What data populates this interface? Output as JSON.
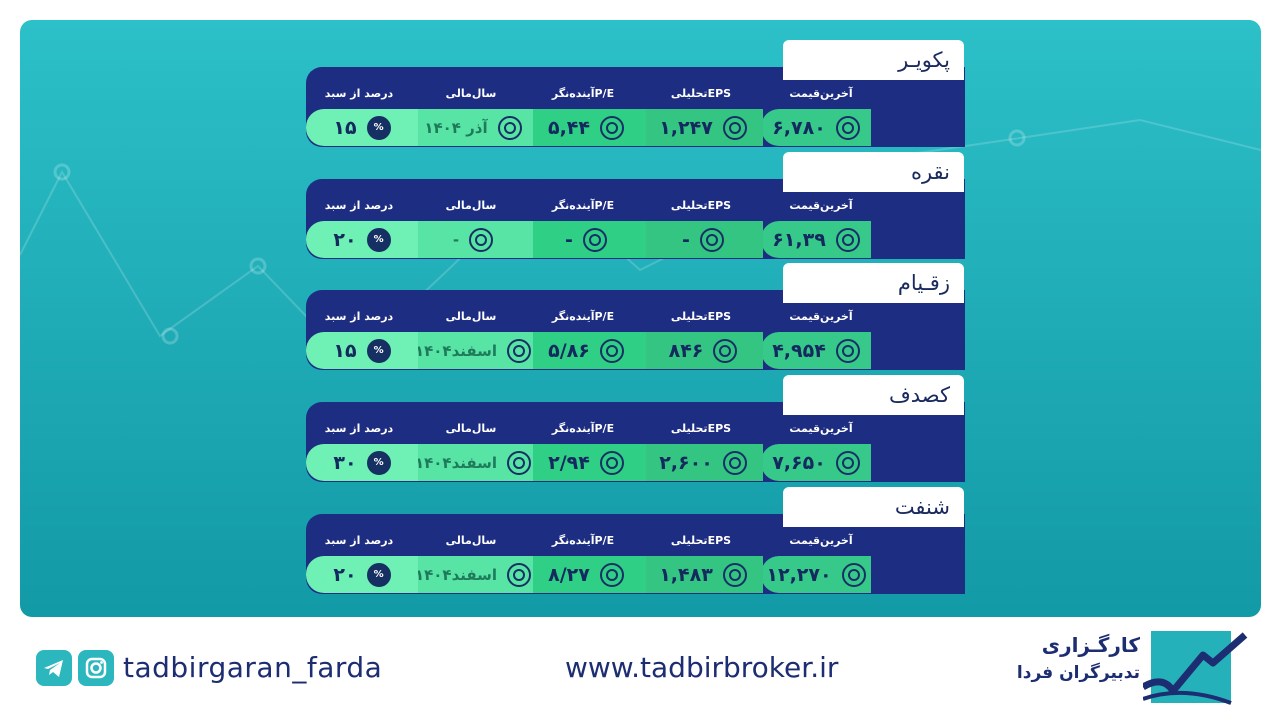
{
  "headers": {
    "last_price": "آخرین‌قیمت",
    "eps": "EPSتحلیلی",
    "pe": "P/Eآینده‌نگر",
    "fiscal": "سال‌مالی",
    "weight": "درصد از سبد"
  },
  "stocks": [
    {
      "name": "پکویـر",
      "last_price": "۶,۷۸۰",
      "eps": "۱,۲۴۷",
      "pe": "۵,۴۴",
      "fiscal": "آذر ۱۴۰۴",
      "weight": "۱۵"
    },
    {
      "name": "نقره",
      "last_price": "۶۱,۳۹",
      "eps": "-",
      "pe": "-",
      "fiscal": "-",
      "weight": "۲۰"
    },
    {
      "name": "زقـیام",
      "last_price": "۴,۹۵۴",
      "eps": "۸۴۶",
      "pe": "۵/۸۶",
      "fiscal": "اسفند۱۴۰۴",
      "weight": "۱۵"
    },
    {
      "name": "کصدف",
      "last_price": "۷,۶۵۰",
      "eps": "۲,۶۰۰",
      "pe": "۲/۹۴",
      "fiscal": "اسفند۱۴۰۴",
      "weight": "۳۰"
    },
    {
      "name": "شنفت",
      "last_price": "۱۲,۲۷۰",
      "eps": "۱,۴۸۳",
      "pe": "۸/۲۷",
      "fiscal": "اسفند۱۴۰۴",
      "weight": "۲۰"
    }
  ],
  "footer": {
    "handle": "tadbirgaran_farda",
    "website": "www.tadbirbroker.ir",
    "brand_line1": "کارگـزاری",
    "brand_line2": "تدبیرگران فردا",
    "social_icons": [
      "telegram-icon",
      "instagram-icon"
    ]
  },
  "colors": {
    "navy": "#1d2d82",
    "teal": "#23b4bd",
    "green": "#37c98a"
  }
}
